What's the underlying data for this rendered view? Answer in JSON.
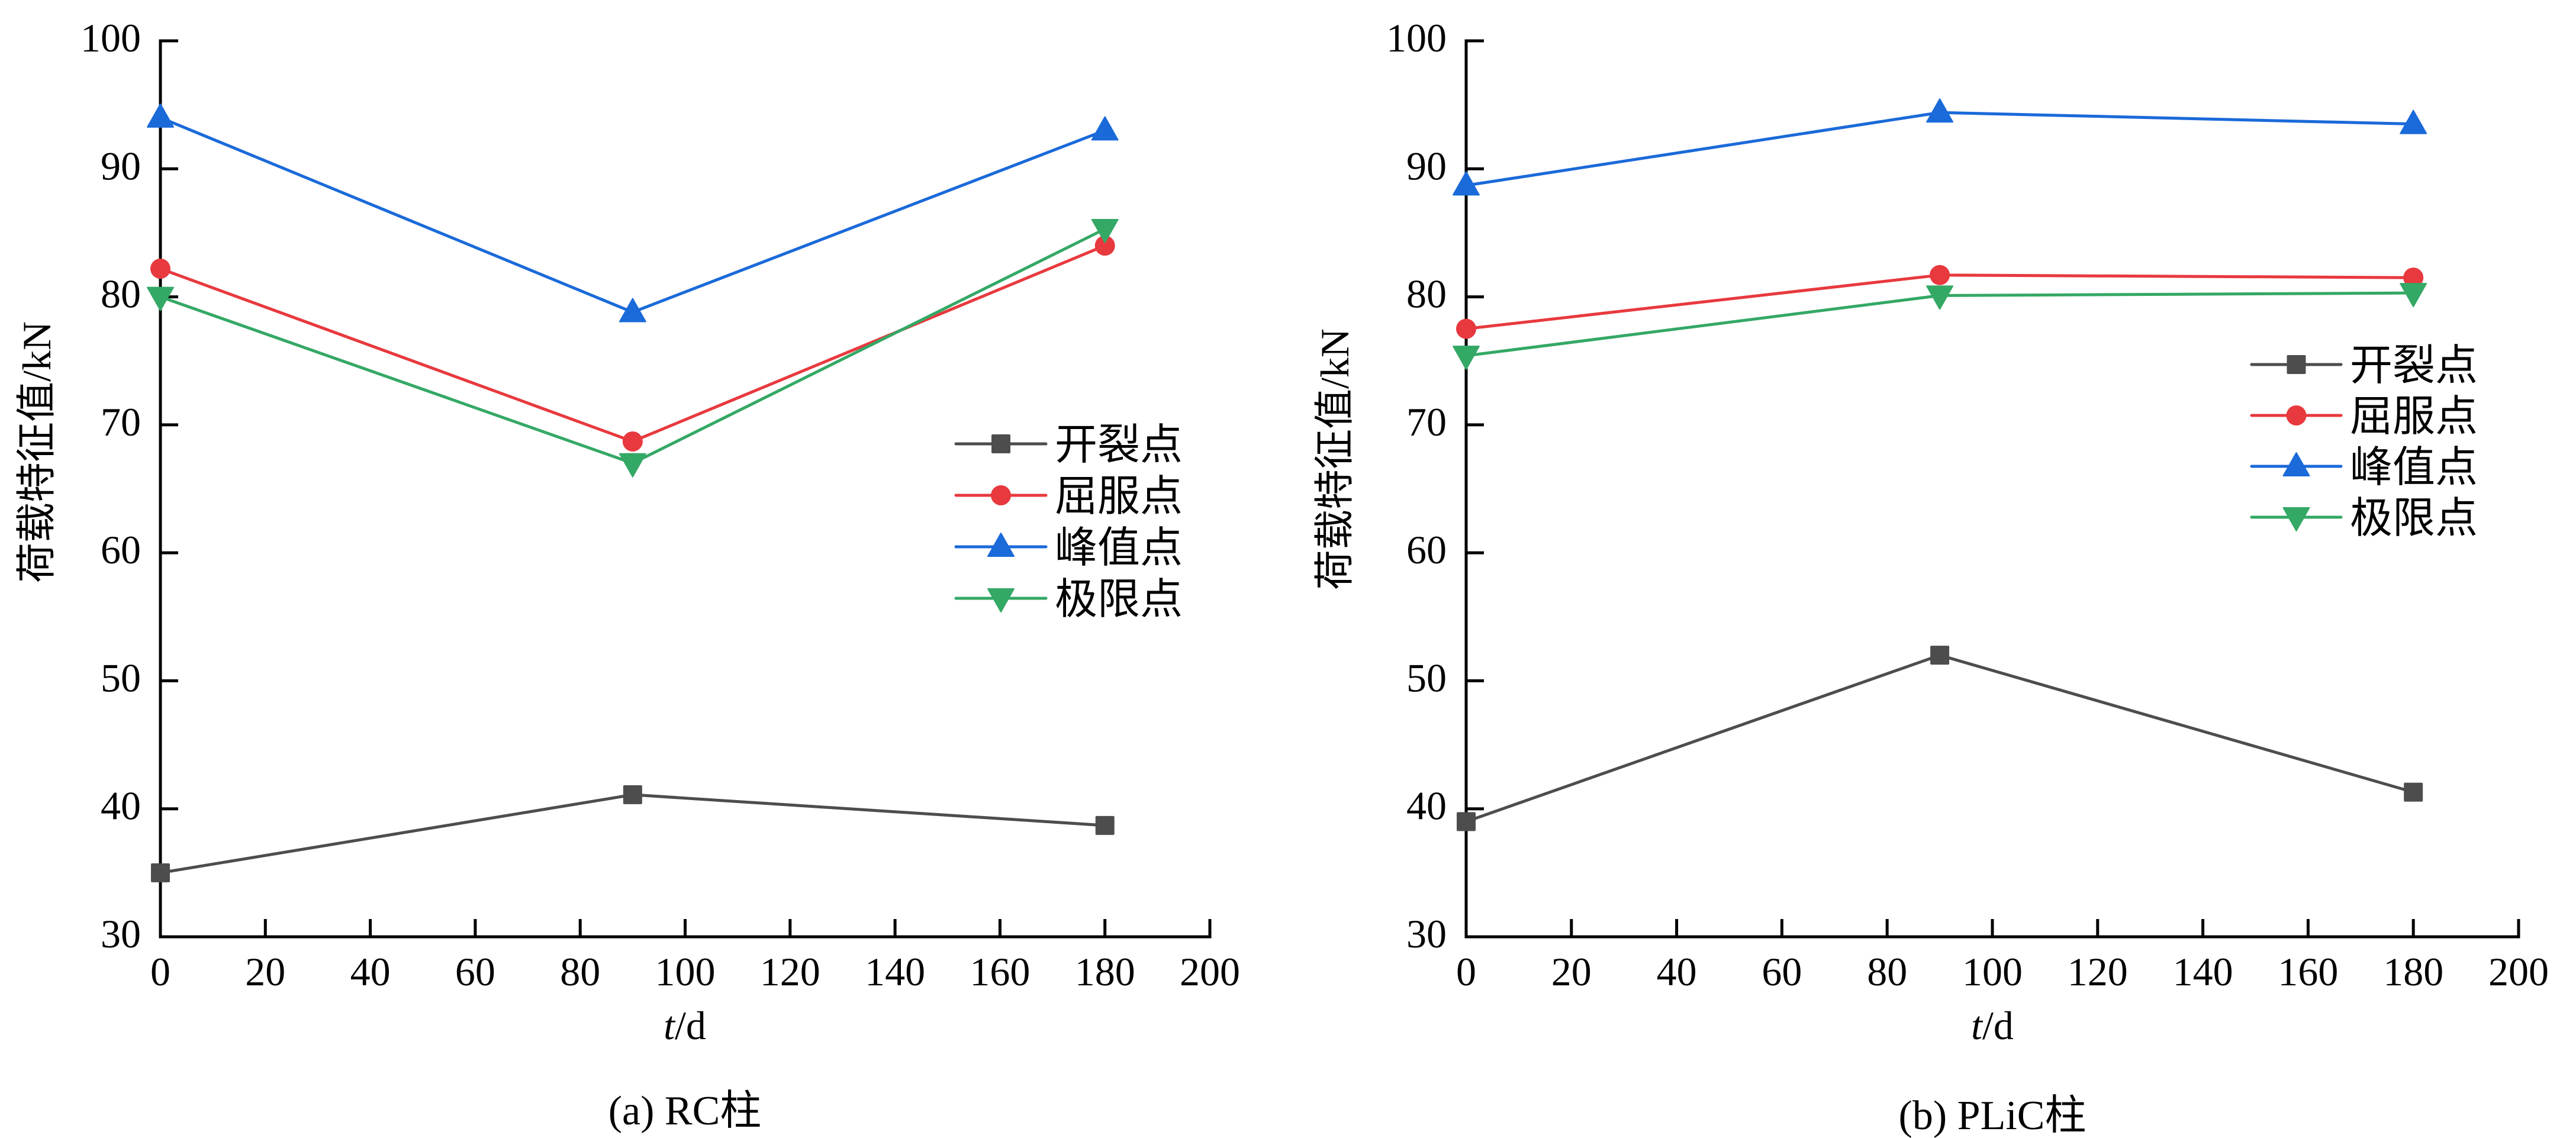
{
  "chart_data": [
    {
      "type": "line",
      "panel": "a",
      "caption": "(a) RC柱",
      "xlabel_italic": "t",
      "xlabel_rest": "/d",
      "ylabel": "荷载特征值/kN",
      "xlim": [
        0,
        200
      ],
      "ylim": [
        30,
        100
      ],
      "xticks": [
        "0",
        "20",
        "40",
        "60",
        "80",
        "100",
        "120",
        "140",
        "160",
        "180",
        "200"
      ],
      "yticks": [
        "30",
        "40",
        "50",
        "60",
        "70",
        "80",
        "90",
        "100"
      ],
      "grid": false,
      "legend_position": "center-right",
      "x": [
        0,
        90,
        180
      ],
      "series": [
        {
          "name": "开裂点",
          "marker": "square",
          "color": "#4d4d4d",
          "values": [
            35.0,
            41.1,
            38.7
          ]
        },
        {
          "name": "屈服点",
          "marker": "circle",
          "color": "#e8393e",
          "values": [
            82.2,
            68.7,
            84.0
          ]
        },
        {
          "name": "峰值点",
          "marker": "triangle-up",
          "color": "#1a6ad9",
          "values": [
            94.0,
            78.8,
            93.0
          ]
        },
        {
          "name": "极限点",
          "marker": "triangle-down",
          "color": "#34a865",
          "values": [
            80.0,
            67.0,
            85.3
          ]
        }
      ]
    },
    {
      "type": "line",
      "panel": "b",
      "caption": "(b) PLiC柱",
      "xlabel_italic": "t",
      "xlabel_rest": "/d",
      "ylabel": "荷载特征值/kN",
      "xlim": [
        0,
        200
      ],
      "ylim": [
        30,
        100
      ],
      "xticks": [
        "0",
        "20",
        "40",
        "60",
        "80",
        "100",
        "120",
        "140",
        "160",
        "180",
        "200"
      ],
      "yticks": [
        "30",
        "40",
        "50",
        "60",
        "70",
        "80",
        "90",
        "100"
      ],
      "grid": false,
      "legend_position": "upper-right",
      "x": [
        0,
        90,
        180
      ],
      "series": [
        {
          "name": "开裂点",
          "marker": "square",
          "color": "#4d4d4d",
          "values": [
            39.0,
            52.0,
            41.3
          ]
        },
        {
          "name": "屈服点",
          "marker": "circle",
          "color": "#e8393e",
          "values": [
            77.5,
            81.7,
            81.5
          ]
        },
        {
          "name": "峰值点",
          "marker": "triangle-up",
          "color": "#1a6ad9",
          "values": [
            88.7,
            94.4,
            93.5
          ]
        },
        {
          "name": "极限点",
          "marker": "triangle-down",
          "color": "#34a865",
          "values": [
            75.4,
            80.1,
            80.3
          ]
        }
      ]
    }
  ]
}
